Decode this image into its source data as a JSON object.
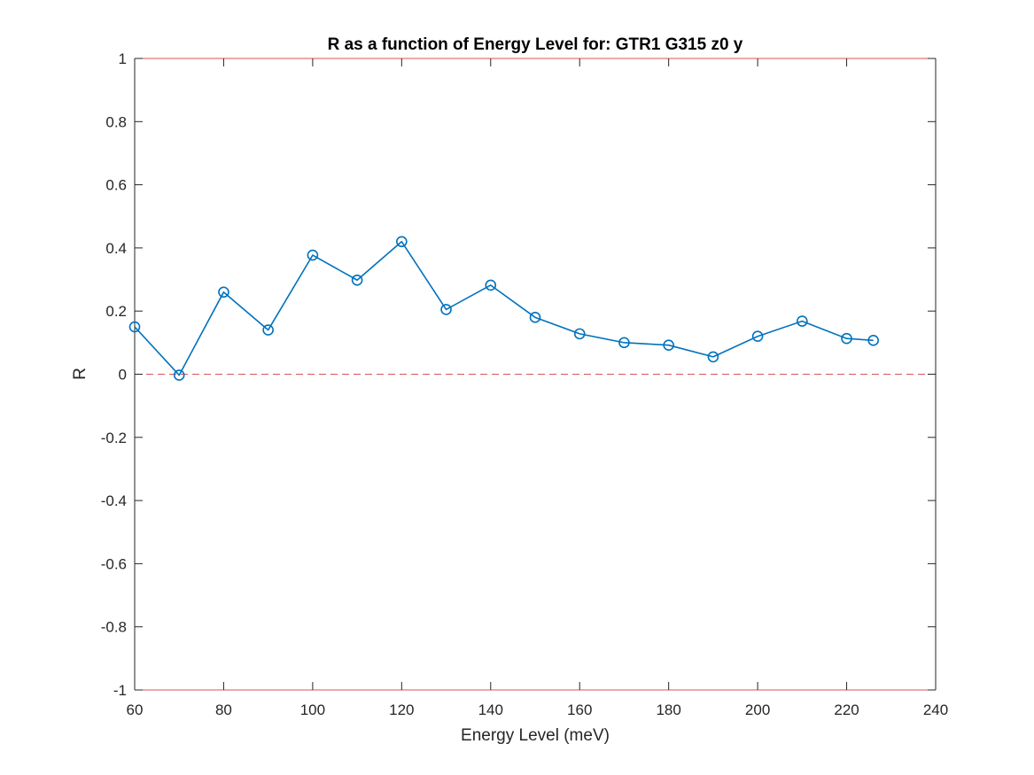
{
  "chart_data": {
    "type": "line",
    "title": "R as a function of Energy Level for: GTR1 G315 z0 y",
    "xlabel": "Energy Level (meV)",
    "ylabel": "R",
    "xlim": [
      60,
      240
    ],
    "ylim": [
      -1,
      1
    ],
    "xticks": [
      60,
      80,
      100,
      120,
      140,
      160,
      180,
      200,
      220,
      240
    ],
    "yticks": [
      -1,
      -0.8,
      -0.6,
      -0.4,
      -0.2,
      0,
      0.2,
      0.4,
      0.6,
      0.8,
      1
    ],
    "grid": false,
    "marker": "circle",
    "series": [
      {
        "x": [
          60,
          70,
          80,
          90,
          100,
          110,
          120,
          130,
          140,
          150,
          160,
          170,
          180,
          190,
          200,
          210,
          220,
          226
        ],
        "values": [
          0.15,
          -0.003,
          0.26,
          0.14,
          0.377,
          0.298,
          0.42,
          0.205,
          0.282,
          0.18,
          0.128,
          0.1,
          0.092,
          0.055,
          0.12,
          0.168,
          0.113,
          0.107
        ],
        "color": "#0072BD"
      }
    ],
    "reference_lines": [
      {
        "y": 0,
        "color": "#D95355",
        "style": "dashed"
      },
      {
        "y": 1,
        "color": "#D95355",
        "style": "solid"
      },
      {
        "y": -1,
        "color": "#D95355",
        "style": "solid"
      }
    ]
  }
}
